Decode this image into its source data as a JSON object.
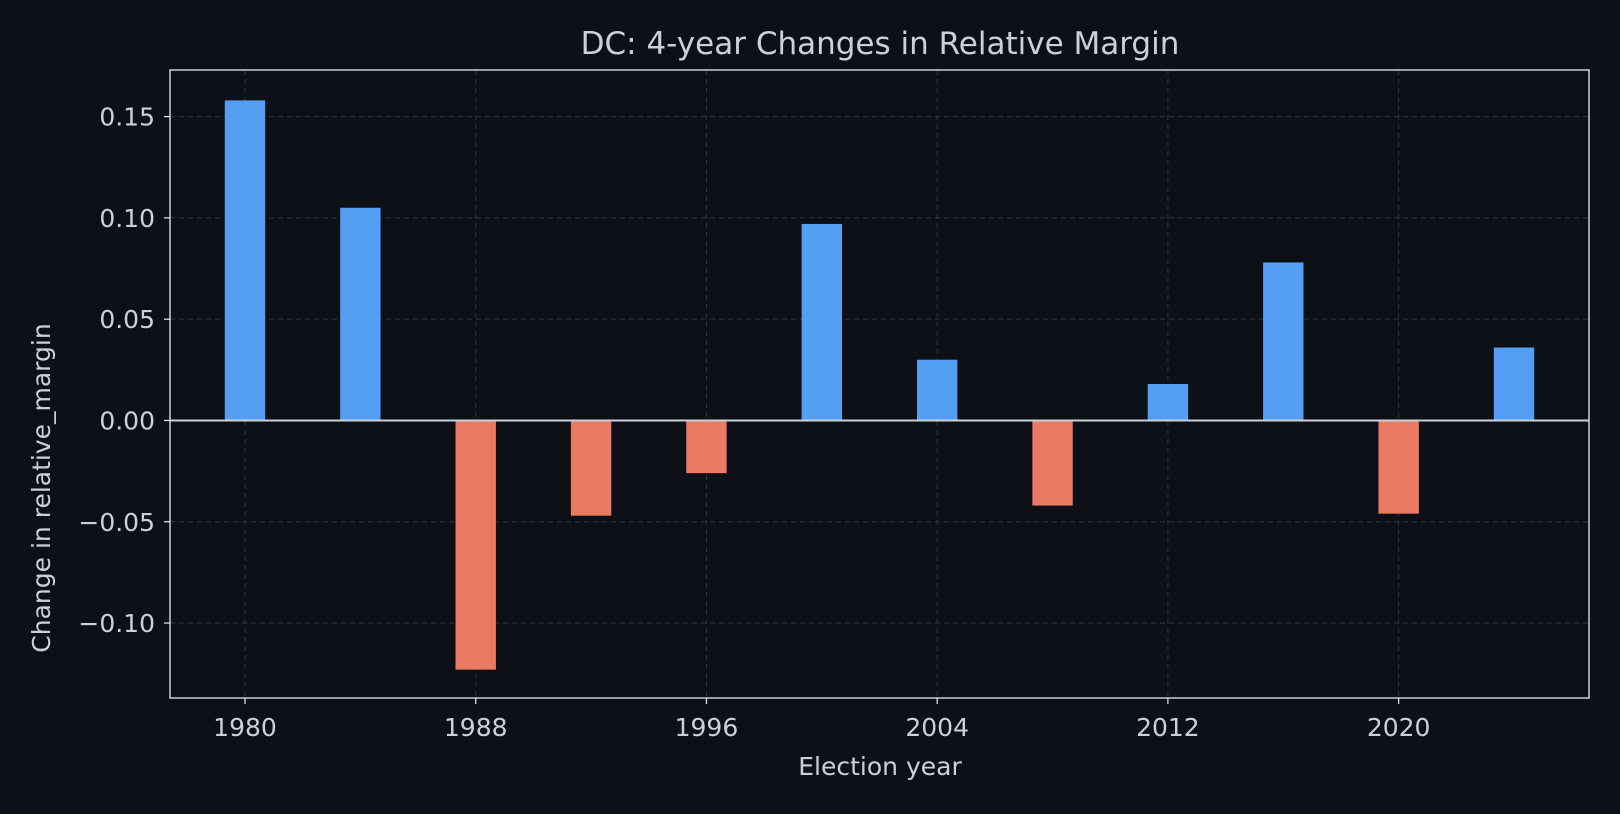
{
  "chart_data": {
    "type": "bar",
    "title": "DC: 4-year Changes in Relative Margin",
    "xlabel": "Election year",
    "ylabel": "Change in relative_margin",
    "x": [
      1980,
      1984,
      1988,
      1992,
      1996,
      2000,
      2004,
      2008,
      2012,
      2016,
      2020,
      2024
    ],
    "values": [
      0.158,
      0.105,
      -0.123,
      -0.047,
      -0.026,
      0.097,
      0.03,
      -0.042,
      0.018,
      0.078,
      -0.046,
      0.036
    ],
    "xlim": [
      1977.4,
      2026.6
    ],
    "ylim": [
      -0.137,
      0.173
    ],
    "xticks": [
      1980,
      1988,
      1996,
      2004,
      2012,
      2020
    ],
    "yticks": [
      0.15,
      0.1,
      0.05,
      0.0,
      -0.05,
      -0.1
    ],
    "ytick_labels": [
      "0.15",
      "0.10",
      "0.05",
      "0.00",
      "−0.05",
      "−0.10"
    ],
    "grid": true,
    "colors": {
      "positive": "#58a6ff",
      "negative": "#f78166",
      "background": "#0d1117",
      "frame": "#e6edf3",
      "zero_line": "#c9d1d9",
      "grid": "#30363d",
      "text": "#c9d1d9"
    }
  }
}
